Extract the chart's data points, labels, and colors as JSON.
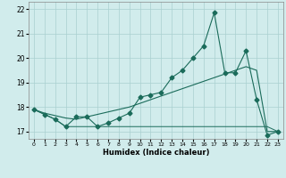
{
  "xlabel": "Humidex (Indice chaleur)",
  "x": [
    0,
    1,
    2,
    3,
    4,
    5,
    6,
    7,
    8,
    9,
    10,
    11,
    12,
    13,
    14,
    15,
    16,
    17,
    18,
    19,
    20,
    21,
    22,
    23
  ],
  "series_volatile": [
    17.9,
    17.7,
    17.5,
    17.2,
    17.6,
    17.6,
    17.2,
    17.35,
    17.55,
    17.75,
    18.4,
    18.5,
    18.6,
    19.2,
    19.5,
    20.0,
    20.5,
    21.85,
    19.4,
    19.4,
    20.3,
    18.3,
    16.85,
    17.0
  ],
  "series_trend": [
    17.9,
    17.75,
    17.65,
    17.55,
    17.5,
    17.6,
    17.7,
    17.8,
    17.9,
    18.0,
    18.15,
    18.3,
    18.45,
    18.6,
    18.75,
    18.9,
    19.05,
    19.2,
    19.35,
    19.5,
    19.65,
    19.5,
    17.0,
    17.0
  ],
  "series_flat": [
    17.9,
    17.7,
    17.5,
    17.2,
    17.2,
    17.2,
    17.2,
    17.2,
    17.2,
    17.2,
    17.2,
    17.2,
    17.2,
    17.2,
    17.2,
    17.2,
    17.2,
    17.2,
    17.2,
    17.2,
    17.2,
    17.2,
    17.2,
    17.0
  ],
  "ylim": [
    16.7,
    22.3
  ],
  "xlim": [
    -0.5,
    23.5
  ],
  "xticks": [
    0,
    1,
    2,
    3,
    4,
    5,
    6,
    7,
    8,
    9,
    10,
    11,
    12,
    13,
    14,
    15,
    16,
    17,
    18,
    19,
    20,
    21,
    22,
    23
  ],
  "yticks": [
    17,
    18,
    19,
    20,
    21,
    22
  ],
  "bg_color": "#d1ecec",
  "grid_color": "#aad0d0",
  "line_color": "#1a6b5a",
  "marker": "D",
  "marker_size": 2.5,
  "lw_main": 0.8,
  "lw_flat": 0.7
}
